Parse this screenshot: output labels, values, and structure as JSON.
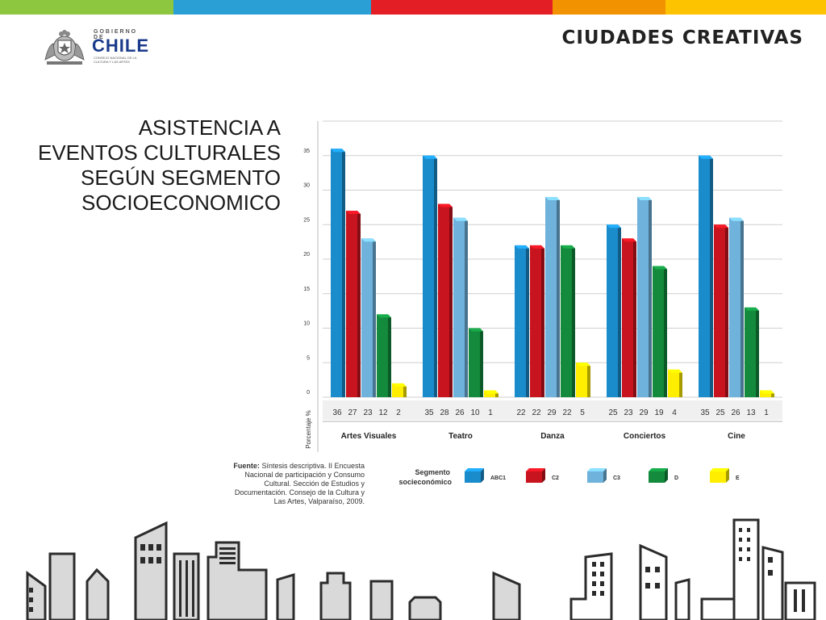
{
  "header": {
    "top_bar_colors": [
      "#8dc63f",
      "#2a9fd6",
      "#e31e24",
      "#f39200",
      "#fdc300"
    ],
    "logo": {
      "line1": "GOBIERNO DE",
      "line2": "CHILE",
      "line3": "CONSEJO NACIONAL DE LA CULTURA Y LAS ARTES"
    },
    "brand": "CIUDADES CREATIVAS"
  },
  "title_lines": [
    "ASISTENCIA A",
    "EVENTOS CULTURALES",
    "SEGÚN SEGMENTO",
    "SOCIOECONOMICO"
  ],
  "source": {
    "label": "Fuente:",
    "text": "Síntesis descriptiva. II Encuesta Nacional de participación y Consumo Cultural. Sección de Estudios y Documentación. Consejo de la Cultura y Las Artes, Valparaíso, 2009."
  },
  "legend": {
    "title_line1": "Segmento",
    "title_line2": "socieconómico"
  },
  "chart_data": {
    "type": "bar",
    "ylabel": "Porcentaje %",
    "ylim": [
      0,
      40
    ],
    "yticks": [
      0,
      5,
      10,
      15,
      20,
      25,
      30,
      35
    ],
    "grid": true,
    "legend_position": "bottom",
    "categories": [
      "Artes Visuales",
      "Teatro",
      "Danza",
      "Conciertos",
      "Cine"
    ],
    "series": [
      {
        "name": "ABC1",
        "color": "#1a8ccc",
        "values": [
          36,
          35,
          22,
          25,
          35
        ]
      },
      {
        "name": "C2",
        "color": "#c8141e",
        "values": [
          27,
          28,
          22,
          23,
          25
        ]
      },
      {
        "name": "C3",
        "color": "#6fb2dc",
        "values": [
          23,
          26,
          29,
          29,
          26
        ]
      },
      {
        "name": "D",
        "color": "#138a3c",
        "values": [
          12,
          10,
          22,
          19,
          13
        ]
      },
      {
        "name": "E",
        "color": "#ffee00",
        "values": [
          2,
          1,
          5,
          4,
          1
        ]
      }
    ]
  }
}
